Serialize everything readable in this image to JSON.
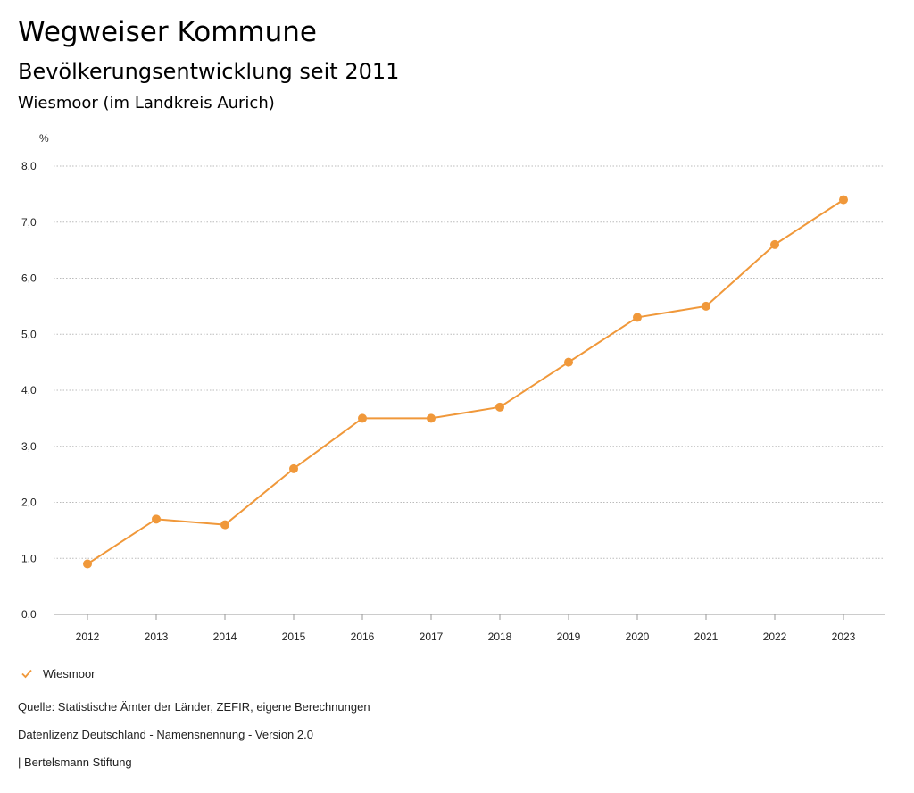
{
  "header": {
    "title": "Wegweiser Kommune",
    "subtitle": "Bevölkerungsentwicklung seit 2011",
    "location": "Wiesmoor (im Landkreis Aurich)"
  },
  "colors": {
    "series": "#f0983a",
    "grid": "#bbbbbb",
    "text": "#222222"
  },
  "legend": {
    "icon": "check-icon",
    "label": "Wiesmoor"
  },
  "footer": {
    "source": "Quelle: Statistische Ämter der Länder, ZEFIR, eigene Berechnungen",
    "license": "Datenlizenz Deutschland - Namensnennung - Version 2.0",
    "credit": "| Bertelsmann Stiftung"
  },
  "chart_data": {
    "type": "line",
    "title": "Bevölkerungsentwicklung seit 2011",
    "xlabel": "",
    "ylabel": "%",
    "x": [
      "2012",
      "2013",
      "2014",
      "2015",
      "2016",
      "2017",
      "2018",
      "2019",
      "2020",
      "2021",
      "2022",
      "2023"
    ],
    "series": [
      {
        "name": "Wiesmoor",
        "values": [
          0.9,
          1.7,
          1.6,
          2.6,
          3.5,
          3.5,
          3.7,
          4.5,
          5.3,
          5.5,
          6.6,
          7.4
        ]
      }
    ],
    "ylim": [
      0,
      8
    ],
    "yticks": [
      "0,0",
      "1,0",
      "2,0",
      "3,0",
      "4,0",
      "5,0",
      "6,0",
      "7,0",
      "8,0"
    ],
    "grid": true,
    "legend_position": "bottom-left"
  }
}
